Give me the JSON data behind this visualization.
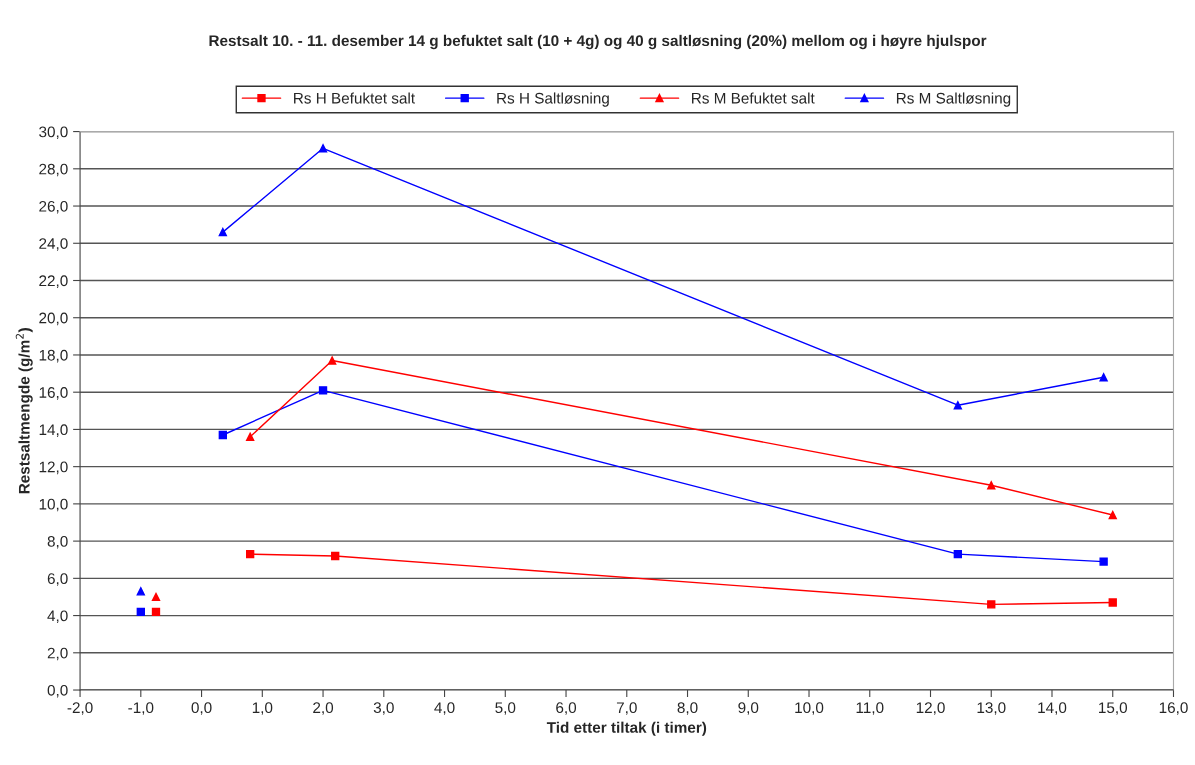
{
  "chart_data": {
    "type": "line",
    "title": "Restsalt 10. - 11. desember 14 g befuktet salt (10 + 4g) og 40 g saltløsning (20%) mellom og i høyre hjulspor",
    "xlabel": "Tid etter tiltak (i timer)",
    "ylabel": "Restsaltmengde (g/m$^{2}$)",
    "series": [
      {
        "name": "Rs H Befuktet salt",
        "color": "#ff0000",
        "marker": "square",
        "x": [
          -0.75,
          null,
          0.8,
          2.2,
          13.0,
          15.0
        ],
        "values": [
          4.2,
          null,
          7.3,
          7.2,
          4.6,
          4.7
        ]
      },
      {
        "name": "Rs H Saltløsning",
        "color": "#0000ff",
        "marker": "square",
        "x": [
          -1.0,
          null,
          0.35,
          2.0,
          12.45,
          14.85
        ],
        "values": [
          4.2,
          null,
          13.7,
          16.1,
          7.3,
          6.9
        ]
      },
      {
        "name": "Rs M Befuktet salt",
        "color": "#ff0000",
        "marker": "triangle",
        "x": [
          -0.75,
          null,
          0.8,
          2.15,
          13.0,
          15.0
        ],
        "values": [
          5.0,
          null,
          13.6,
          17.7,
          11.0,
          9.4
        ]
      },
      {
        "name": "Rs M Saltløsning",
        "color": "#0000ff",
        "marker": "triangle",
        "x": [
          -1.0,
          null,
          0.35,
          2.0,
          12.45,
          14.85
        ],
        "values": [
          5.3,
          null,
          24.6,
          29.1,
          15.3,
          16.8
        ]
      }
    ],
    "xlim": [
      -2,
      16
    ],
    "xticks": [
      {
        "value": -2,
        "label": "-2,0"
      },
      {
        "value": -1,
        "label": "-1,0"
      },
      {
        "value": 0,
        "label": "0,0"
      },
      {
        "value": 1,
        "label": "1,0"
      },
      {
        "value": 2,
        "label": "2,0"
      },
      {
        "value": 3,
        "label": "3,0"
      },
      {
        "value": 4,
        "label": "4,0"
      },
      {
        "value": 5,
        "label": "5,0"
      },
      {
        "value": 6,
        "label": "6,0"
      },
      {
        "value": 7,
        "label": "7,0"
      },
      {
        "value": 8,
        "label": "8,0"
      },
      {
        "value": 9,
        "label": "9,0"
      },
      {
        "value": 10,
        "label": "10,0"
      },
      {
        "value": 11,
        "label": "11,0"
      },
      {
        "value": 12,
        "label": "12,0"
      },
      {
        "value": 13,
        "label": "13,0"
      },
      {
        "value": 14,
        "label": "14,0"
      },
      {
        "value": 15,
        "label": "15,0"
      },
      {
        "value": 16,
        "label": "16,0"
      }
    ],
    "ylim": [
      0,
      30
    ],
    "yticks": [
      {
        "value": 0,
        "label": "0,0"
      },
      {
        "value": 2,
        "label": "2,0"
      },
      {
        "value": 4,
        "label": "4,0"
      },
      {
        "value": 6,
        "label": "6,0"
      },
      {
        "value": 8,
        "label": "8,0"
      },
      {
        "value": 10,
        "label": "10,0"
      },
      {
        "value": 12,
        "label": "12,0"
      },
      {
        "value": 14,
        "label": "14,0"
      },
      {
        "value": 16,
        "label": "16,0"
      },
      {
        "value": 18,
        "label": "18,0"
      },
      {
        "value": 20,
        "label": "20,0"
      },
      {
        "value": 22,
        "label": "22,0"
      },
      {
        "value": 24,
        "label": "24,0"
      },
      {
        "value": 26,
        "label": "26,0"
      },
      {
        "value": 28,
        "label": "28,0"
      },
      {
        "value": 30,
        "label": "30,0"
      }
    ],
    "grid": "y",
    "legend": "top",
    "line_style": "solid"
  }
}
